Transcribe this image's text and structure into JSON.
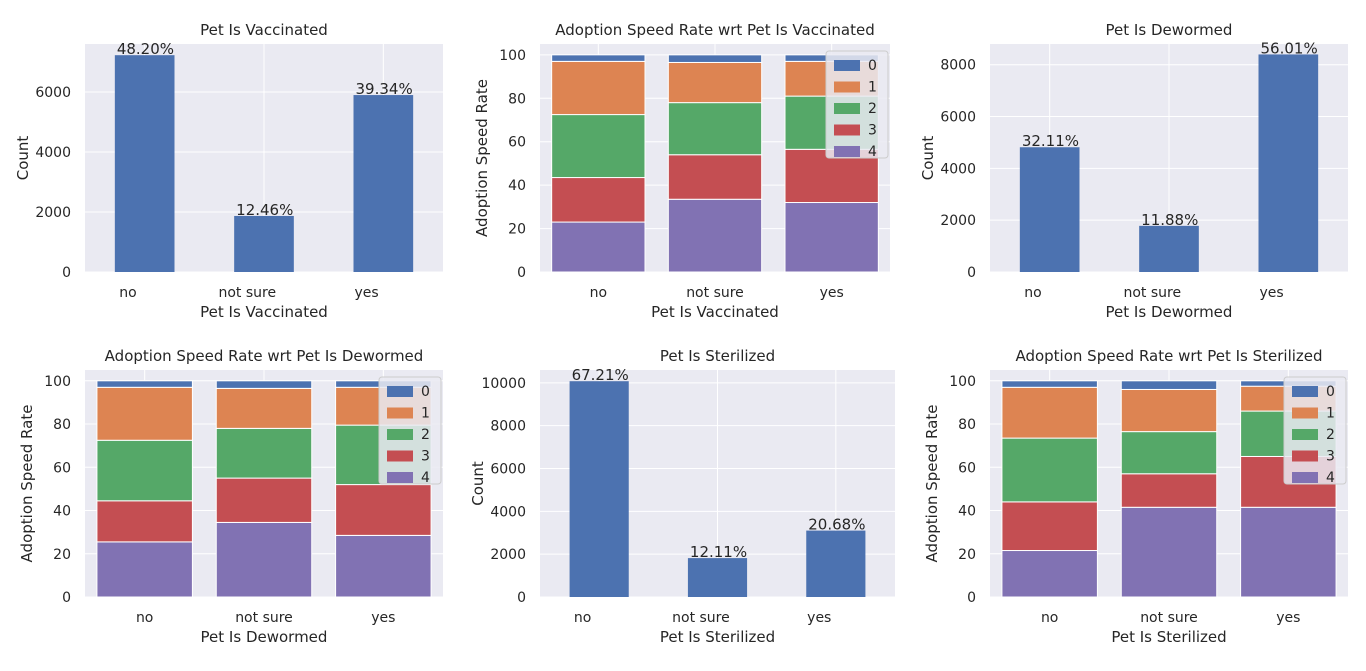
{
  "colors": {
    "plot_bg": "#EAEAF2",
    "grid": "#FFFFFF",
    "bar": "#4C72B0",
    "speed_0": "#4C72B0",
    "speed_1": "#DD8452",
    "speed_2": "#55A868",
    "speed_3": "#C44E52",
    "speed_4": "#8172B3"
  },
  "chart_data": [
    {
      "type": "bar",
      "title": "Pet Is Vaccinated",
      "xlabel": "Pet Is Vaccinated",
      "ylabel": "Count",
      "categories": [
        "no",
        "not sure",
        "yes"
      ],
      "values": [
        7227,
        1868,
        5898
      ],
      "labels": [
        "48.20%",
        "12.46%",
        "39.34%"
      ],
      "ylim": [
        0,
        7600
      ],
      "yticks": [
        0,
        2000,
        4000,
        6000
      ]
    },
    {
      "type": "bar",
      "stacked": true,
      "title": "Adoption Speed Rate wrt Pet Is Vaccinated",
      "xlabel": "Pet Is Vaccinated",
      "ylabel": "Adoption Speed Rate",
      "categories": [
        "no",
        "not sure",
        "yes"
      ],
      "ylim": [
        0,
        105
      ],
      "yticks": [
        0,
        20,
        40,
        60,
        80,
        100
      ],
      "legend_position": "upper right",
      "series": [
        {
          "name": "4",
          "values": [
            23,
            33.5,
            32
          ]
        },
        {
          "name": "3",
          "values": [
            20.5,
            20.5,
            24.5
          ]
        },
        {
          "name": "2",
          "values": [
            29,
            24,
            24.5
          ]
        },
        {
          "name": "1",
          "values": [
            24.5,
            18.5,
            16
          ]
        },
        {
          "name": "0",
          "values": [
            3,
            3.5,
            3
          ]
        }
      ]
    },
    {
      "type": "bar",
      "title": "Pet Is Dewormed",
      "xlabel": "Pet Is Dewormed",
      "ylabel": "Count",
      "categories": [
        "no",
        "not sure",
        "yes"
      ],
      "values": [
        4815,
        1781,
        8397
      ],
      "labels": [
        "32.11%",
        "11.88%",
        "56.01%"
      ],
      "ylim": [
        0,
        8800
      ],
      "yticks": [
        0,
        2000,
        4000,
        6000,
        8000
      ]
    },
    {
      "type": "bar",
      "stacked": true,
      "title": "Adoption Speed Rate wrt Pet Is Dewormed",
      "xlabel": "Pet Is Dewormed",
      "ylabel": "Adoption Speed Rate",
      "categories": [
        "no",
        "not sure",
        "yes"
      ],
      "ylim": [
        0,
        105
      ],
      "yticks": [
        0,
        20,
        40,
        60,
        80,
        100
      ],
      "legend_position": "upper right",
      "series": [
        {
          "name": "4",
          "values": [
            25.5,
            34.5,
            28.5
          ]
        },
        {
          "name": "3",
          "values": [
            19,
            20.5,
            23.5
          ]
        },
        {
          "name": "2",
          "values": [
            28,
            23,
            27.5
          ]
        },
        {
          "name": "1",
          "values": [
            24.5,
            18.5,
            17.5
          ]
        },
        {
          "name": "0",
          "values": [
            3,
            3.5,
            3
          ]
        }
      ]
    },
    {
      "type": "bar",
      "title": "Pet Is Sterilized",
      "xlabel": "Pet Is Sterilized",
      "ylabel": "Count",
      "categories": [
        "no",
        "not sure",
        "yes"
      ],
      "values": [
        10077,
        1816,
        3101
      ],
      "labels": [
        "67.21%",
        "12.11%",
        "20.68%"
      ],
      "ylim": [
        0,
        10600
      ],
      "yticks": [
        0,
        2000,
        4000,
        6000,
        8000,
        10000
      ]
    },
    {
      "type": "bar",
      "stacked": true,
      "title": "Adoption Speed Rate wrt Pet Is Sterilized",
      "xlabel": "Pet Is Sterilized",
      "ylabel": "Adoption Speed Rate",
      "categories": [
        "no",
        "not sure",
        "yes"
      ],
      "ylim": [
        0,
        105
      ],
      "yticks": [
        0,
        20,
        40,
        60,
        80,
        100
      ],
      "legend_position": "upper right",
      "series": [
        {
          "name": "4",
          "values": [
            21.5,
            41.5,
            41.5
          ]
        },
        {
          "name": "3",
          "values": [
            22.5,
            15.5,
            23.5
          ]
        },
        {
          "name": "2",
          "values": [
            29.5,
            19.5,
            21
          ]
        },
        {
          "name": "1",
          "values": [
            23.5,
            19.5,
            11.5
          ]
        },
        {
          "name": "0",
          "values": [
            3,
            4,
            2.5
          ]
        }
      ]
    }
  ]
}
